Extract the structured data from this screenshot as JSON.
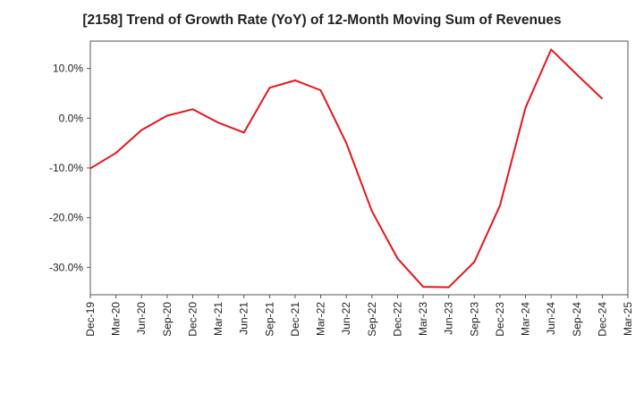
{
  "chart_data": {
    "type": "line",
    "title": "[2158]  Trend of Growth Rate (YoY) of 12-Month Moving Sum of Revenues",
    "xlabel": "",
    "ylabel": "",
    "x_ticks": [
      "Dec-19",
      "Mar-20",
      "Jun-20",
      "Sep-20",
      "Dec-20",
      "Mar-21",
      "Jun-21",
      "Sep-21",
      "Dec-21",
      "Mar-22",
      "Jun-22",
      "Sep-22",
      "Dec-22",
      "Mar-23",
      "Jun-23",
      "Sep-23",
      "Dec-23",
      "Mar-24",
      "Jun-24",
      "Sep-24",
      "Dec-24",
      "Mar-25"
    ],
    "y_ticks": [
      10,
      0,
      -10,
      -20,
      -30
    ],
    "y_tick_labels": [
      "10.0%",
      "0.0%",
      "-10.0%",
      "-20.0%",
      "-30.0%"
    ],
    "ylim": [
      -35.5,
      15.5
    ],
    "grid": true,
    "series": [
      {
        "color": "#e8141b",
        "x": [
          "Dec-19",
          "Mar-20",
          "Jun-20",
          "Sep-20",
          "Dec-20",
          "Mar-21",
          "Jun-21",
          "Sep-21",
          "Dec-21",
          "Mar-22",
          "Jun-22",
          "Sep-22",
          "Dec-22",
          "Mar-23",
          "Jun-23",
          "Sep-23",
          "Dec-23",
          "Mar-24",
          "Jun-24",
          "Sep-24",
          "Dec-24"
        ],
        "values": [
          -10.1,
          -7.0,
          -2.4,
          0.5,
          1.8,
          -0.9,
          -2.9,
          6.1,
          7.6,
          5.6,
          -5.0,
          -18.7,
          -28.2,
          -33.9,
          -34.0,
          -28.9,
          -17.6,
          2.1,
          13.8,
          8.8,
          3.9
        ]
      }
    ]
  }
}
